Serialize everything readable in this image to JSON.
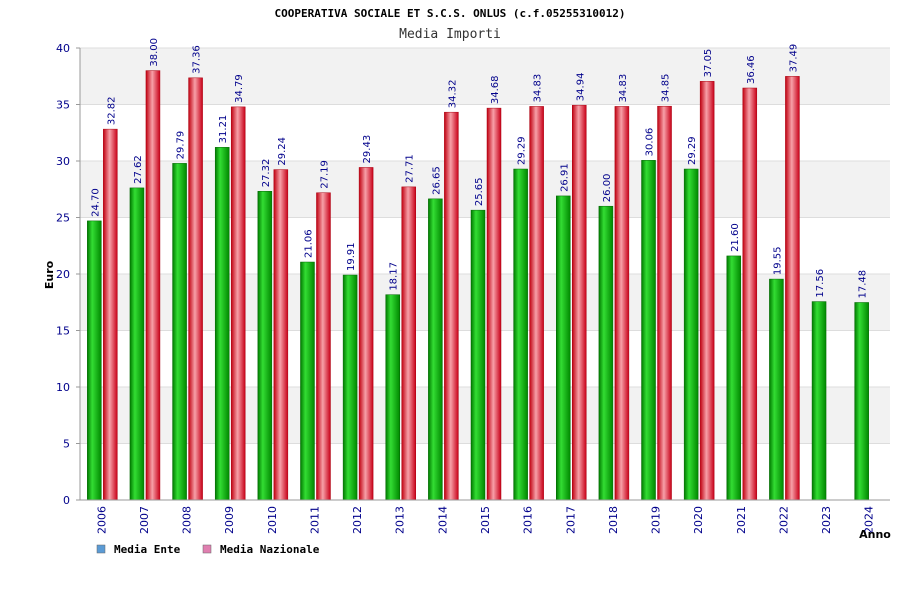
{
  "chart_data": {
    "type": "bar",
    "title": "COOPERATIVA SOCIALE ET S.C.S. ONLUS (c.f.05255310012)",
    "subtitle": "Media Importi",
    "xlabel": "Anno",
    "ylabel": "Euro",
    "ylim": [
      0,
      40
    ],
    "yticks": [
      0,
      5,
      10,
      15,
      20,
      25,
      30,
      35,
      40
    ],
    "grid": true,
    "legend_position": "bottom-left",
    "categories": [
      "2006",
      "2007",
      "2008",
      "2009",
      "2010",
      "2011",
      "2012",
      "2013",
      "2014",
      "2015",
      "2016",
      "2017",
      "2018",
      "2019",
      "2020",
      "2021",
      "2022",
      "2023",
      "2024"
    ],
    "series": [
      {
        "name": "Media Ente",
        "legend_color": "#5b9bd5",
        "bar_color": "#00aa00",
        "values": [
          24.7,
          27.62,
          29.79,
          31.21,
          27.32,
          21.06,
          19.91,
          18.17,
          26.65,
          25.65,
          29.29,
          26.91,
          26.0,
          30.06,
          29.29,
          21.6,
          19.55,
          17.56,
          17.48
        ],
        "labels": [
          "24.70",
          "27.62",
          "29.79",
          "31.21",
          "27.32",
          "21.06",
          "19.91",
          "18.17",
          "26.65",
          "25.65",
          "29.29",
          "26.91",
          "26.00",
          "30.06",
          "29.29",
          "21.60",
          "19.55",
          "17.56",
          "17.48"
        ]
      },
      {
        "name": "Media Nazionale",
        "legend_color": "#e07fb0",
        "bar_color": "#dd1122",
        "values": [
          32.82,
          38.0,
          37.36,
          34.79,
          29.24,
          27.19,
          29.43,
          27.71,
          34.32,
          34.68,
          34.83,
          34.94,
          34.83,
          34.85,
          37.05,
          36.46,
          37.49,
          null,
          null
        ],
        "labels": [
          "32.82",
          "38.00",
          "37.36",
          "34.79",
          "29.24",
          "27.19",
          "29.43",
          "27.71",
          "34.32",
          "34.68",
          "34.83",
          "34.94",
          "34.83",
          "34.85",
          "37.05",
          "36.46",
          "37.49",
          null,
          null
        ]
      }
    ]
  }
}
